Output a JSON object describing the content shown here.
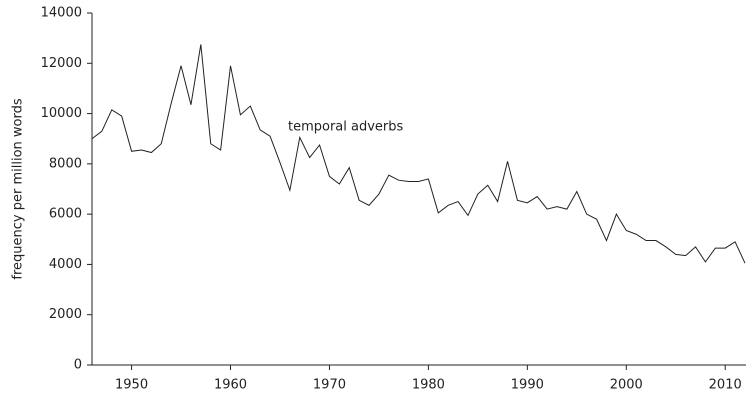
{
  "chart_data": {
    "type": "line",
    "y_label": "frequency per million words",
    "annotation": "temporal adverbs",
    "x": [
      1946,
      1947,
      1948,
      1949,
      1950,
      1951,
      1952,
      1953,
      1954,
      1955,
      1956,
      1957,
      1958,
      1959,
      1960,
      1961,
      1962,
      1963,
      1964,
      1965,
      1966,
      1967,
      1968,
      1969,
      1970,
      1971,
      1972,
      1973,
      1974,
      1975,
      1976,
      1977,
      1978,
      1979,
      1980,
      1981,
      1982,
      1983,
      1984,
      1985,
      1986,
      1987,
      1988,
      1989,
      1990,
      1991,
      1992,
      1993,
      1994,
      1995,
      1996,
      1997,
      1998,
      1999,
      2000,
      2001,
      2002,
      2003,
      2004,
      2005,
      2006,
      2007,
      2008,
      2009,
      2010,
      2011,
      2012
    ],
    "series": [
      {
        "name": "temporal adverbs",
        "color": "#222222",
        "values": [
          9000,
          9300,
          10150,
          9900,
          8500,
          8550,
          8450,
          8800,
          10400,
          11900,
          10350,
          12750,
          8800,
          8550,
          11900,
          9950,
          10300,
          9350,
          9100,
          8050,
          6950,
          9050,
          8250,
          8750,
          7500,
          7200,
          7850,
          6550,
          6350,
          6800,
          7550,
          7350,
          7300,
          7300,
          7400,
          6050,
          6350,
          6500,
          5950,
          6800,
          7150,
          6500,
          8100,
          6550,
          6450,
          6700,
          6200,
          6300,
          6200,
          6900,
          6000,
          5800,
          4950,
          6000,
          5350,
          5200,
          4950,
          4950,
          4700,
          4400,
          4350,
          4700,
          4100,
          4650,
          4650,
          4900,
          4050
        ]
      }
    ],
    "xlim": [
      1946,
      2012
    ],
    "xticks": [
      1950,
      1960,
      1970,
      1980,
      1990,
      2000,
      2010
    ],
    "ylim": [
      0,
      14000
    ],
    "yticks": [
      0,
      2000,
      4000,
      6000,
      8000,
      10000,
      12000,
      14000
    ],
    "grid": false
  }
}
